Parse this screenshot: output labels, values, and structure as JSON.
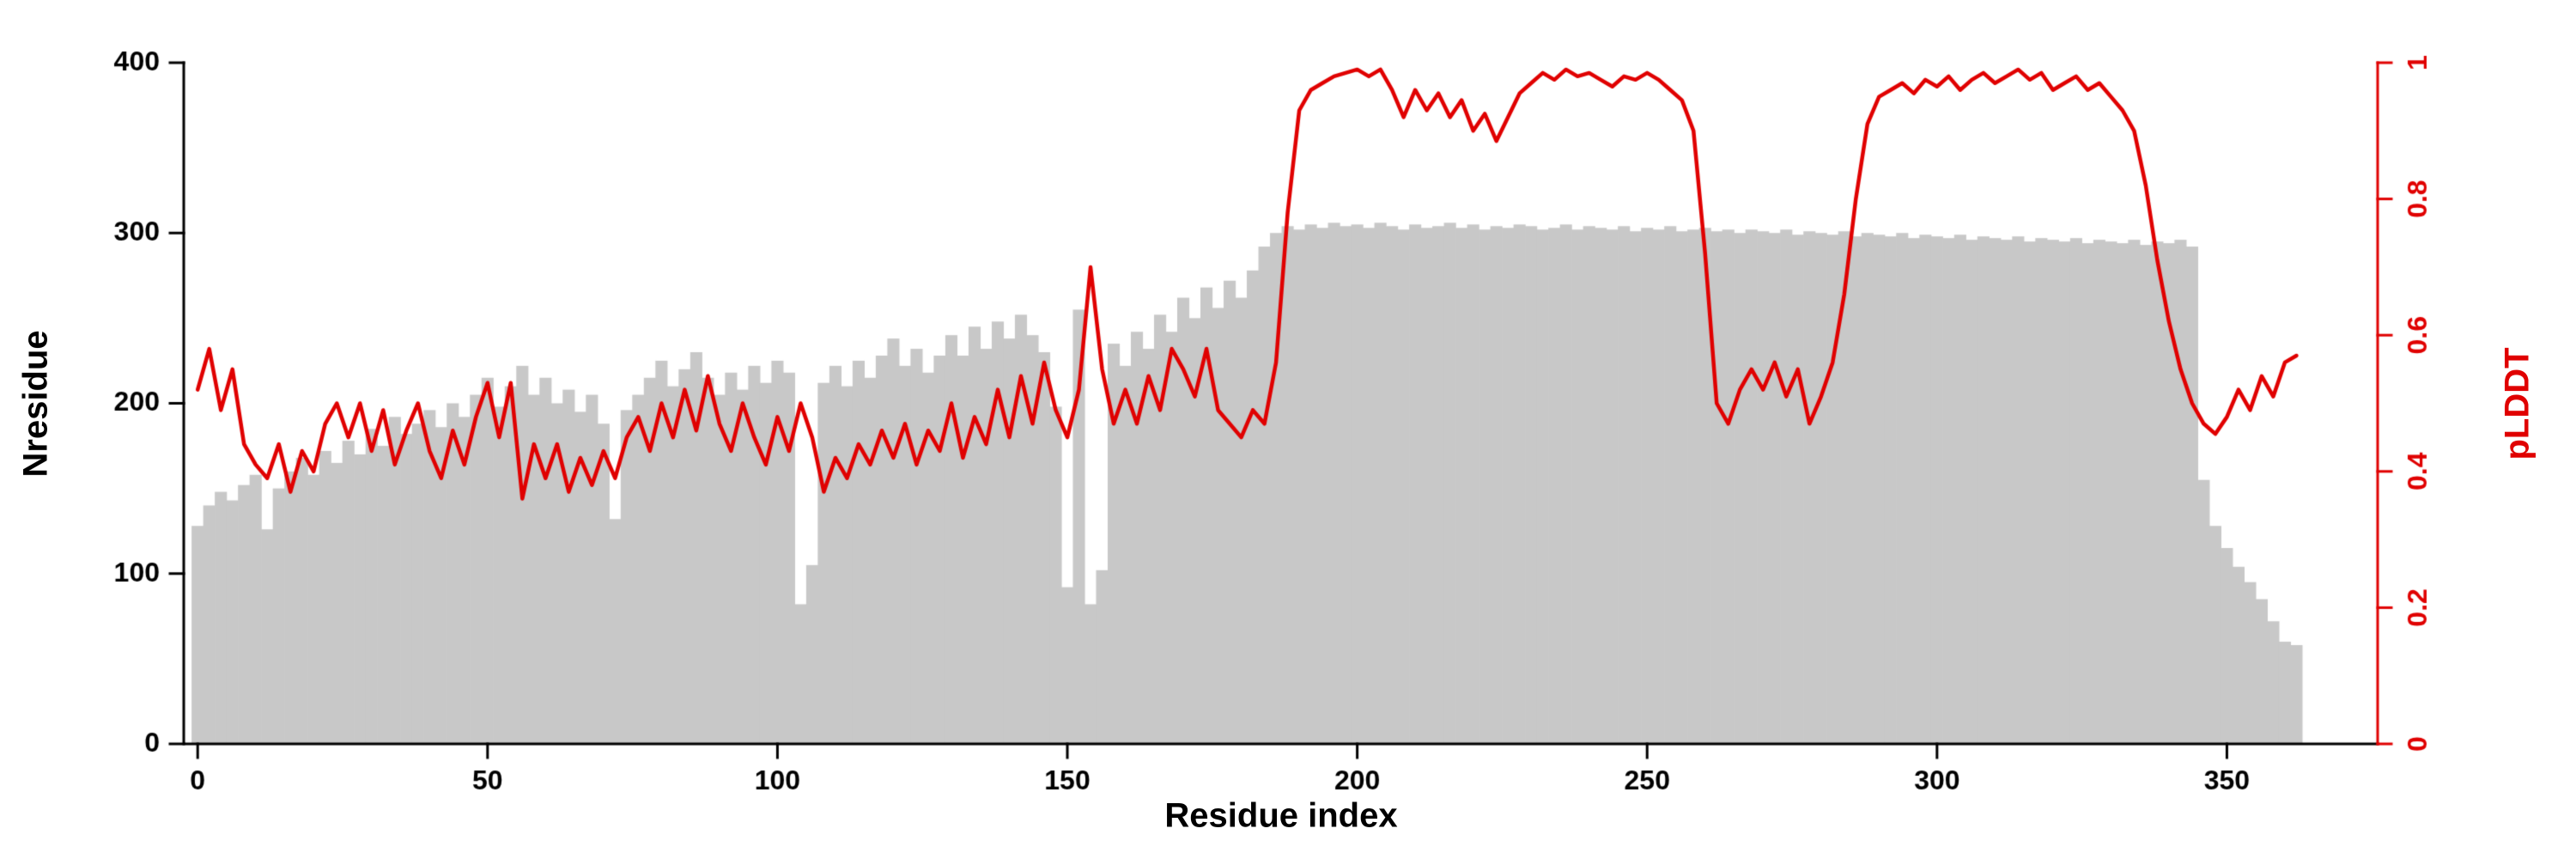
{
  "chart_data": {
    "type": "bar+line",
    "title": "",
    "xlabel": "Residue index",
    "ylabel_left": "Nresidue",
    "ylabel_right": "pLDDT",
    "xlim": [
      -2.4,
      376
    ],
    "ylim_left": [
      0,
      400
    ],
    "ylim_right": [
      0,
      1
    ],
    "xticks": [
      0,
      50,
      100,
      150,
      200,
      250,
      300,
      350
    ],
    "yticks_left": [
      0,
      100,
      200,
      300,
      400
    ],
    "yticks_right": [
      0,
      0.2,
      0.4,
      0.6,
      0.8,
      1
    ],
    "axis_color_left": "#000000",
    "axis_color_right": "#e00000",
    "grid": false,
    "legend": "none",
    "background": "#ffffff",
    "x": [
      0,
      2,
      4,
      6,
      8,
      10,
      12,
      14,
      16,
      18,
      20,
      22,
      24,
      26,
      28,
      30,
      32,
      34,
      36,
      38,
      40,
      42,
      44,
      46,
      48,
      50,
      52,
      54,
      56,
      58,
      60,
      62,
      64,
      66,
      68,
      70,
      72,
      74,
      76,
      78,
      80,
      82,
      84,
      86,
      88,
      90,
      92,
      94,
      96,
      98,
      100,
      102,
      104,
      106,
      108,
      110,
      112,
      114,
      116,
      118,
      120,
      122,
      124,
      126,
      128,
      130,
      132,
      134,
      136,
      138,
      140,
      142,
      144,
      146,
      148,
      150,
      152,
      154,
      156,
      158,
      160,
      162,
      164,
      166,
      168,
      170,
      172,
      174,
      176,
      178,
      180,
      182,
      184,
      186,
      188,
      190,
      192,
      194,
      196,
      198,
      200,
      202,
      204,
      206,
      208,
      210,
      212,
      214,
      216,
      218,
      220,
      222,
      224,
      226,
      228,
      230,
      232,
      234,
      236,
      238,
      240,
      242,
      244,
      246,
      248,
      250,
      252,
      254,
      256,
      258,
      260,
      262,
      264,
      266,
      268,
      270,
      272,
      274,
      276,
      278,
      280,
      282,
      284,
      286,
      288,
      290,
      292,
      294,
      296,
      298,
      300,
      302,
      304,
      306,
      308,
      310,
      312,
      314,
      316,
      318,
      320,
      322,
      324,
      326,
      328,
      330,
      332,
      334,
      336,
      338,
      340,
      342,
      344,
      346,
      348,
      350,
      352,
      354,
      356,
      358,
      360,
      362
    ],
    "series": [
      {
        "name": "Nresidue",
        "type": "bar",
        "axis": "left",
        "color": "#c8c8c8",
        "values": [
          128,
          140,
          148,
          143,
          152,
          158,
          126,
          150,
          160,
          168,
          158,
          172,
          165,
          178,
          170,
          185,
          175,
          192,
          182,
          188,
          196,
          186,
          200,
          192,
          205,
          215,
          198,
          210,
          222,
          205,
          215,
          200,
          208,
          195,
          205,
          188,
          132,
          196,
          205,
          215,
          225,
          210,
          220,
          230,
          215,
          205,
          218,
          208,
          222,
          212,
          225,
          218,
          82,
          105,
          212,
          222,
          210,
          225,
          215,
          228,
          238,
          222,
          232,
          218,
          228,
          240,
          228,
          245,
          232,
          248,
          238,
          252,
          240,
          230,
          198,
          92,
          255,
          82,
          102,
          235,
          222,
          242,
          232,
          252,
          242,
          262,
          250,
          268,
          256,
          272,
          262,
          278,
          292,
          300,
          304,
          302,
          305,
          303,
          306,
          304,
          305,
          303,
          306,
          304,
          302,
          305,
          303,
          304,
          306,
          303,
          305,
          302,
          304,
          303,
          305,
          304,
          302,
          303,
          305,
          302,
          304,
          303,
          302,
          304,
          301,
          303,
          302,
          304,
          301,
          302,
          303,
          301,
          302,
          300,
          302,
          301,
          300,
          302,
          299,
          301,
          300,
          299,
          301,
          298,
          300,
          299,
          298,
          300,
          297,
          299,
          298,
          297,
          299,
          296,
          298,
          297,
          296,
          298,
          295,
          297,
          296,
          295,
          297,
          294,
          296,
          295,
          294,
          296,
          293,
          295,
          294,
          296,
          292,
          155,
          128,
          115,
          104,
          95,
          85,
          72,
          60,
          58
        ]
      },
      {
        "name": "pLDDT",
        "type": "line",
        "axis": "right",
        "color": "#e00000",
        "values": [
          0.52,
          0.58,
          0.49,
          0.55,
          0.44,
          0.41,
          0.39,
          0.44,
          0.37,
          0.43,
          0.4,
          0.47,
          0.5,
          0.45,
          0.5,
          0.43,
          0.49,
          0.41,
          0.46,
          0.5,
          0.43,
          0.39,
          0.46,
          0.41,
          0.48,
          0.53,
          0.45,
          0.53,
          0.36,
          0.44,
          0.39,
          0.44,
          0.37,
          0.42,
          0.38,
          0.43,
          0.39,
          0.45,
          0.48,
          0.43,
          0.5,
          0.45,
          0.52,
          0.46,
          0.54,
          0.47,
          0.43,
          0.5,
          0.45,
          0.41,
          0.48,
          0.43,
          0.5,
          0.45,
          0.37,
          0.42,
          0.39,
          0.44,
          0.41,
          0.46,
          0.42,
          0.47,
          0.41,
          0.46,
          0.43,
          0.5,
          0.42,
          0.48,
          0.44,
          0.52,
          0.45,
          0.54,
          0.47,
          0.56,
          0.49,
          0.45,
          0.52,
          0.7,
          0.55,
          0.47,
          0.52,
          0.47,
          0.54,
          0.49,
          0.58,
          0.55,
          0.51,
          0.58,
          0.49,
          0.47,
          0.45,
          0.49,
          0.47,
          0.56,
          0.78,
          0.93,
          0.96,
          0.97,
          0.98,
          0.985,
          0.99,
          0.98,
          0.99,
          0.96,
          0.92,
          0.96,
          0.93,
          0.955,
          0.92,
          0.945,
          0.9,
          0.925,
          0.885,
          0.92,
          0.955,
          0.97,
          0.985,
          0.975,
          0.99,
          0.98,
          0.985,
          0.975,
          0.965,
          0.98,
          0.975,
          0.985,
          0.975,
          0.96,
          0.945,
          0.9,
          0.72,
          0.5,
          0.47,
          0.52,
          0.55,
          0.52,
          0.56,
          0.51,
          0.55,
          0.47,
          0.51,
          0.56,
          0.66,
          0.8,
          0.91,
          0.95,
          0.96,
          0.97,
          0.955,
          0.975,
          0.965,
          0.98,
          0.96,
          0.975,
          0.985,
          0.97,
          0.98,
          0.99,
          0.975,
          0.985,
          0.96,
          0.97,
          0.98,
          0.96,
          0.97,
          0.95,
          0.93,
          0.9,
          0.82,
          0.71,
          0.62,
          0.55,
          0.5,
          0.47,
          0.455,
          0.48,
          0.52,
          0.49,
          0.54,
          0.51,
          0.56,
          0.57
        ]
      }
    ]
  }
}
